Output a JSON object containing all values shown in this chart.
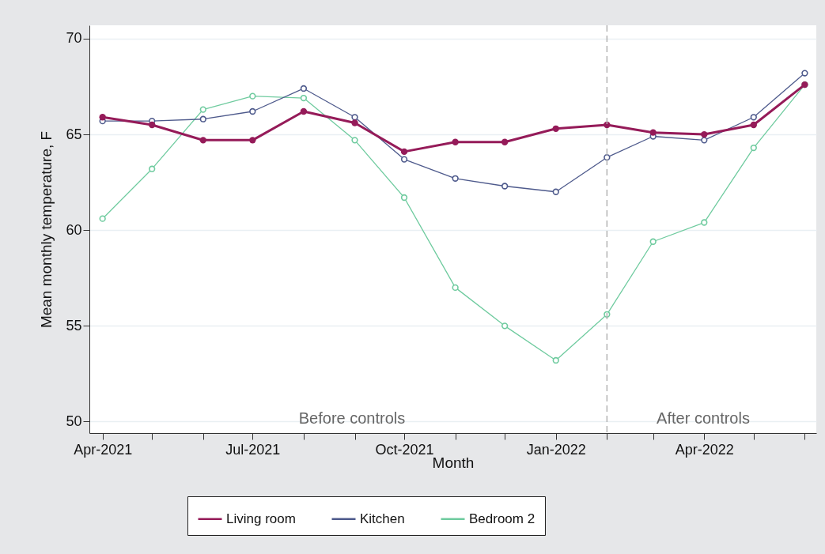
{
  "chart_data": {
    "type": "line",
    "xlabel": "Month",
    "ylabel": "Mean monthly temperature, F",
    "x": [
      "2021-04",
      "2021-05",
      "2021-06",
      "2021-07",
      "2021-08",
      "2021-09",
      "2021-10",
      "2021-11",
      "2021-12",
      "2022-01",
      "2022-02",
      "2022-03",
      "2022-04",
      "2022-05",
      "2022-06"
    ],
    "series": [
      {
        "name": "Living room",
        "color": "#951b59",
        "values": [
          65.9,
          65.5,
          64.7,
          64.7,
          66.2,
          65.6,
          64.1,
          64.6,
          64.6,
          65.3,
          65.5,
          65.1,
          65.0,
          65.5,
          67.6
        ]
      },
      {
        "name": "Kitchen",
        "color": "#4e5a8c",
        "values": [
          65.7,
          65.7,
          65.8,
          66.2,
          67.4,
          65.9,
          63.7,
          62.7,
          62.3,
          62.0,
          63.8,
          64.9,
          64.7,
          65.9,
          68.2
        ]
      },
      {
        "name": "Bedroom 2",
        "color": "#6fcb9f",
        "values": [
          60.6,
          63.2,
          66.3,
          67.0,
          66.9,
          64.7,
          61.7,
          57.0,
          55.0,
          53.2,
          55.6,
          59.4,
          60.4,
          64.3,
          67.6
        ]
      }
    ],
    "xlim": [
      "2021-03-24",
      "2022-06-08"
    ],
    "xticks": [
      {
        "value": "2021-04",
        "label": "Apr-2021"
      },
      {
        "value": "2021-05",
        "label": null
      },
      {
        "value": "2021-06",
        "label": null
      },
      {
        "value": "2021-07",
        "label": "Jul-2021"
      },
      {
        "value": "2021-08",
        "label": null
      },
      {
        "value": "2021-09",
        "label": null
      },
      {
        "value": "2021-10",
        "label": "Oct-2021"
      },
      {
        "value": "2021-11",
        "label": null
      },
      {
        "value": "2021-12",
        "label": null
      },
      {
        "value": "2022-01",
        "label": "Jan-2022"
      },
      {
        "value": "2022-02",
        "label": null
      },
      {
        "value": "2022-03",
        "label": null
      },
      {
        "value": "2022-04",
        "label": "Apr-2022"
      },
      {
        "value": "2022-05",
        "label": null
      },
      {
        "value": "2022-06",
        "label": null
      }
    ],
    "ylim": [
      49.4,
      70.7
    ],
    "yticks": [
      50,
      55,
      60,
      65,
      70
    ],
    "ref_lines": [
      {
        "axis": "x",
        "value": "2022-02",
        "color": "#b4b4b4",
        "line_style": "dashed"
      }
    ],
    "annotations": [
      "Before controls",
      "After controls"
    ],
    "grid": "y",
    "legend": "bottom",
    "marker": "circle",
    "line_style": "solid"
  }
}
